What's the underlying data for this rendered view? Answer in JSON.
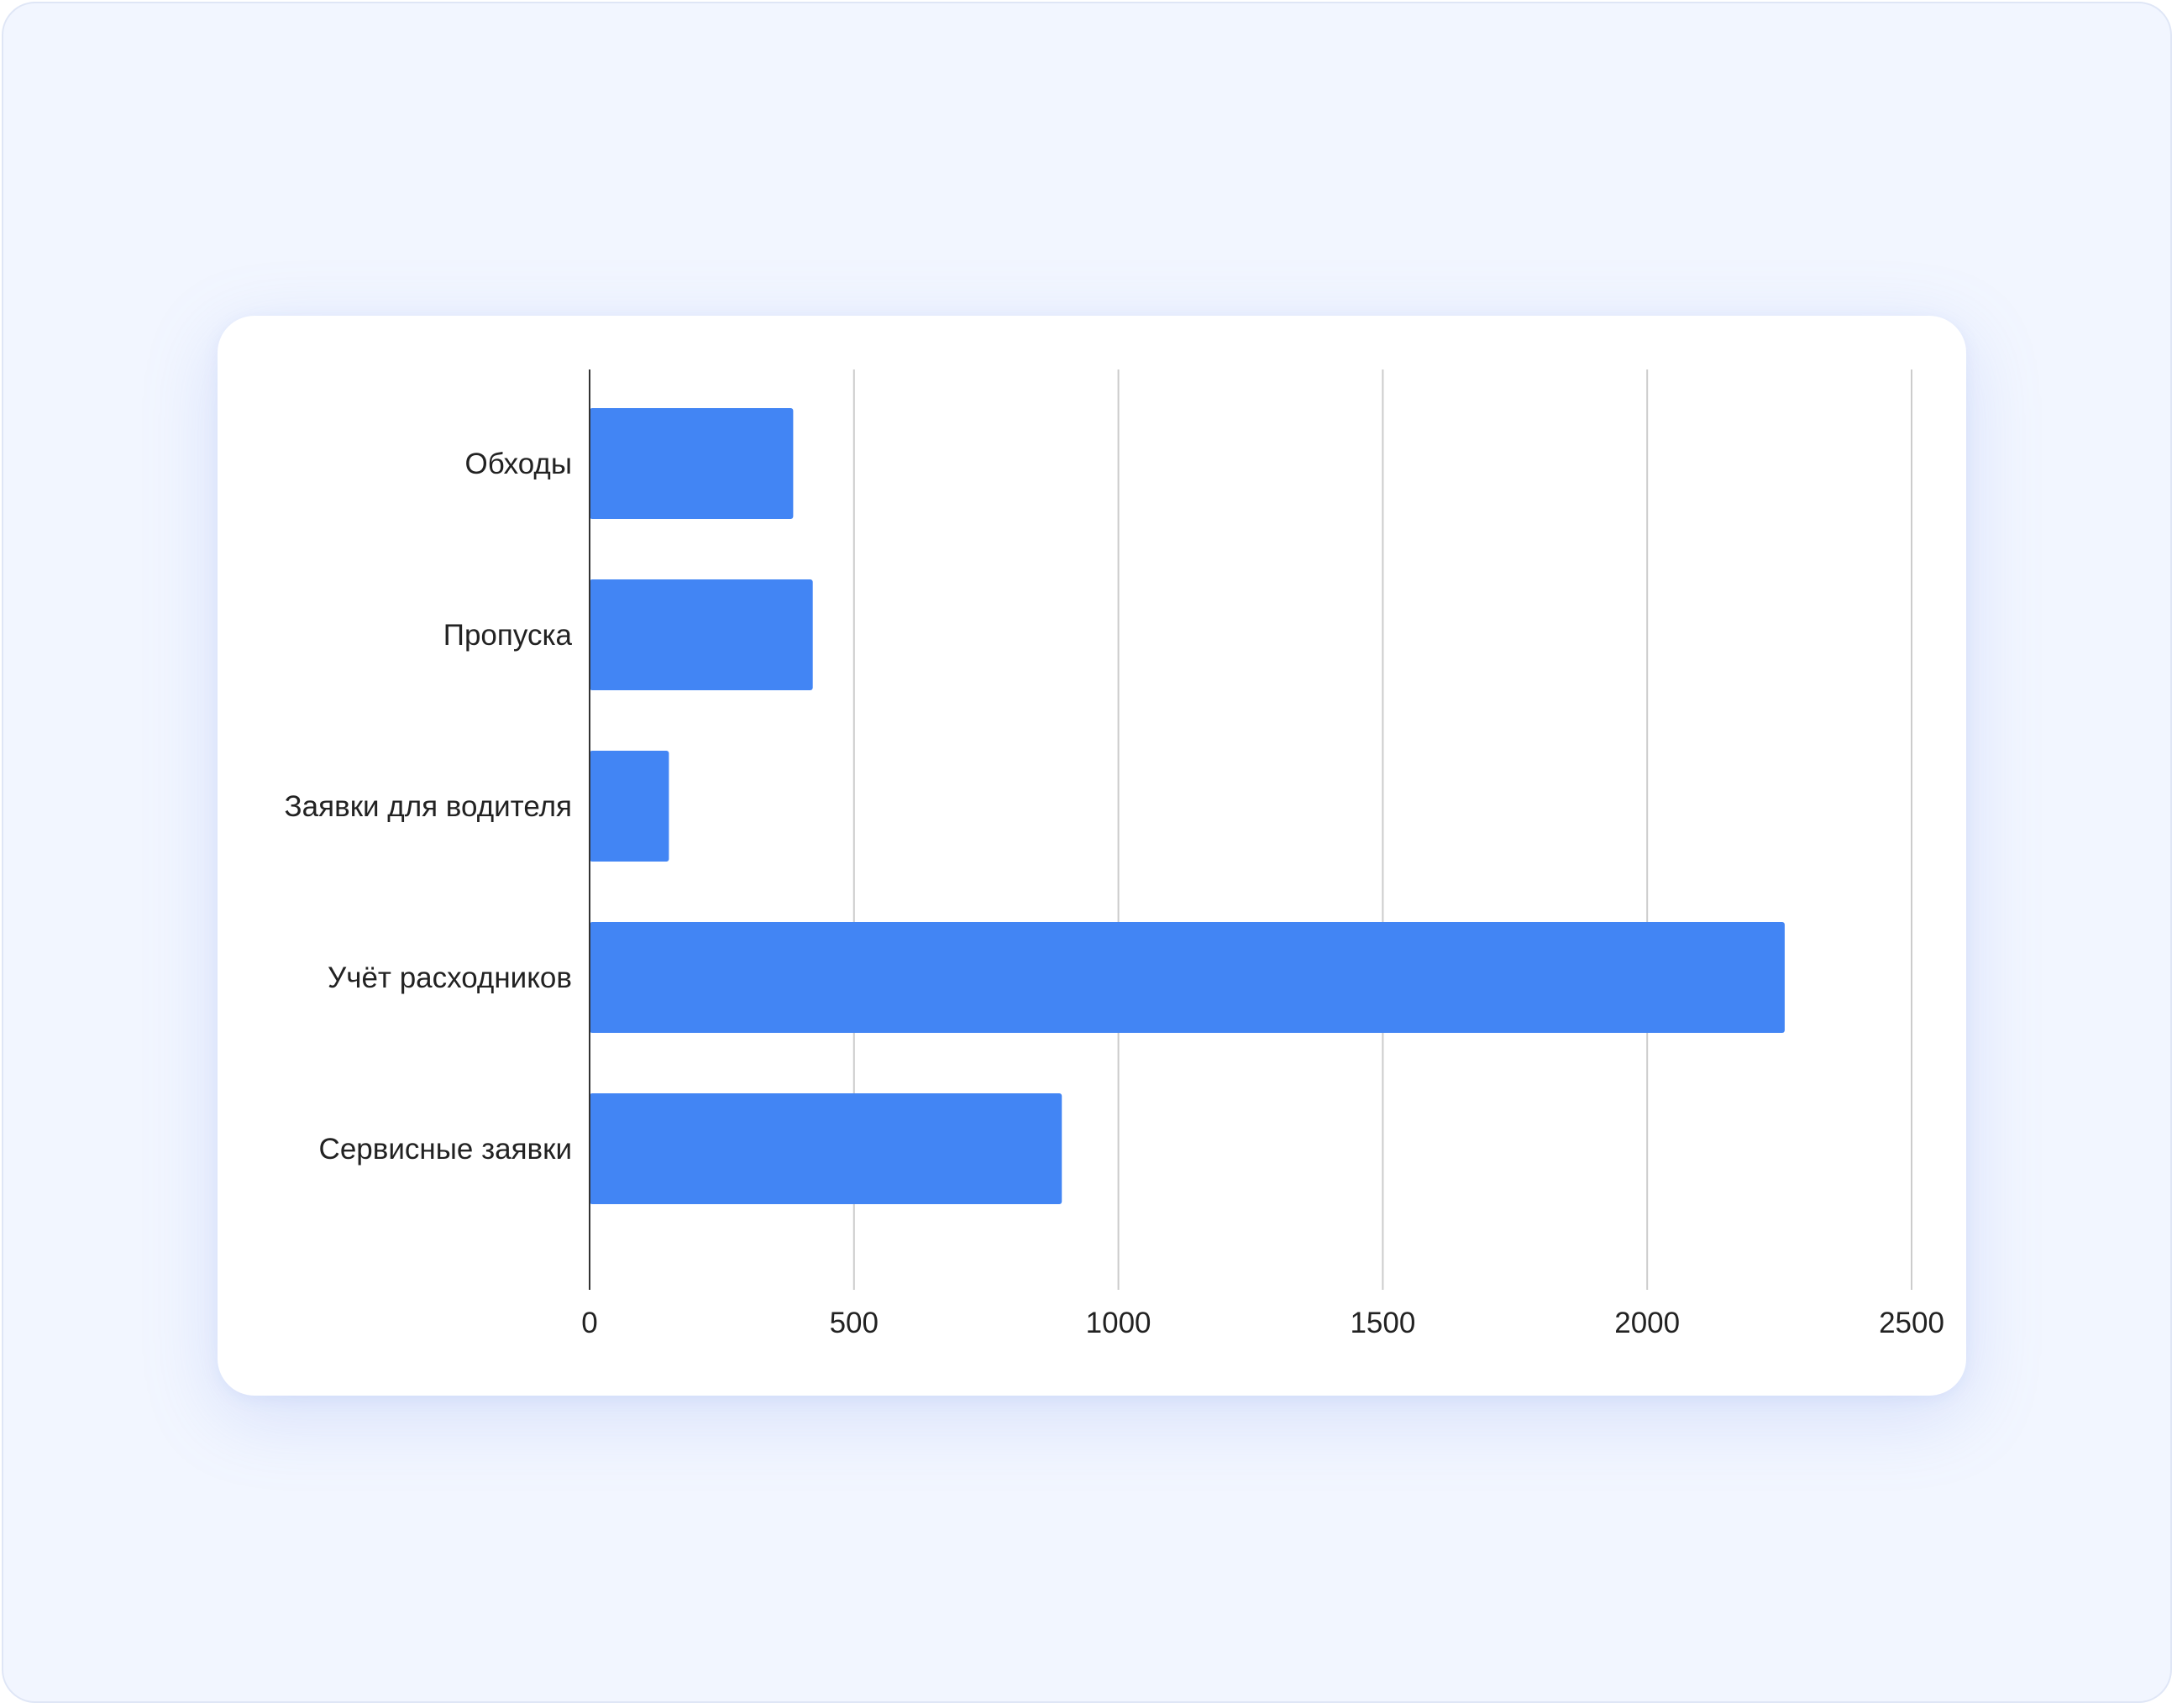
{
  "chart_data": {
    "type": "bar",
    "orientation": "horizontal",
    "categories": [
      "Обходы",
      "Пропуска",
      "Заявки для водителя",
      "Учёт расходников",
      "Сервисные заявки"
    ],
    "values": [
      385,
      422,
      150,
      2260,
      893
    ],
    "xlim": [
      0,
      2500
    ],
    "xticks": [
      "0",
      "500",
      "1000",
      "1500",
      "2000",
      "2500"
    ],
    "grid": true,
    "legend": "none",
    "bar_color": "#4285f4",
    "gridline_color": "#cccccc",
    "axis_color": "#333333"
  }
}
